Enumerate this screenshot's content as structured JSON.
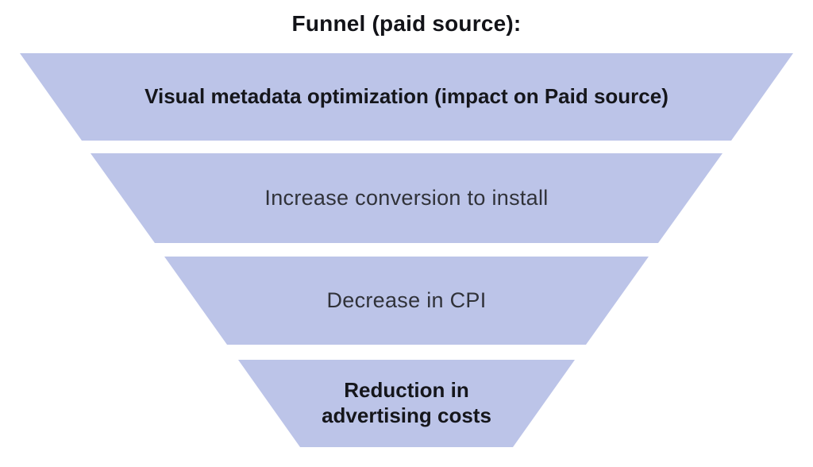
{
  "title": "Funnel (paid source):",
  "colors": {
    "background": "#ffffff",
    "segment_fill": "#bcc4e8",
    "title_text": "#121318",
    "bold_segment_text": "#15161b",
    "regular_segment_text": "#303239"
  },
  "funnel": {
    "segments": [
      {
        "label": "Visual metadata optimization (impact on Paid source)",
        "emphasis": "bold"
      },
      {
        "label": "Increase conversion to install",
        "emphasis": "regular"
      },
      {
        "label": "Decrease in CPI",
        "emphasis": "regular"
      },
      {
        "label": "Reduction in\nadvertising costs",
        "emphasis": "bold"
      }
    ]
  }
}
